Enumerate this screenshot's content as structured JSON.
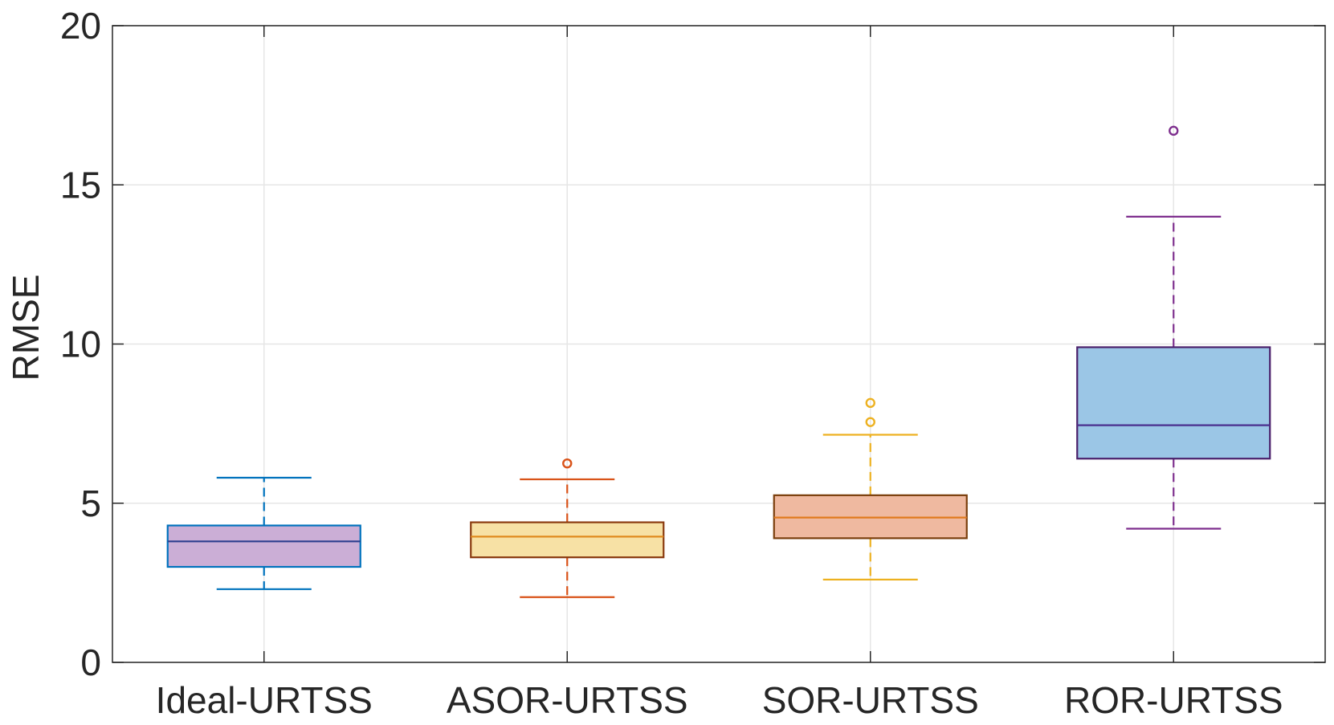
{
  "chart_data": {
    "type": "box",
    "title": "",
    "xlabel": "",
    "ylabel": "RMSE",
    "ylim": [
      0,
      20
    ],
    "yticks": [
      0,
      5,
      10,
      15,
      20
    ],
    "ytick_labels": [
      "0",
      "5",
      "10",
      "15",
      "20"
    ],
    "grid": true,
    "categories": [
      "Ideal-URTSS",
      "ASOR-URTSS",
      "SOR-URTSS",
      "ROR-URTSS"
    ],
    "boxes": [
      {
        "category": "Ideal-URTSS",
        "whisker_low": 2.3,
        "q1": 3.0,
        "median": 3.8,
        "q3": 4.3,
        "whisker_high": 5.8,
        "outliers": [],
        "fill": "#cbaed6",
        "edge": "#0072bd",
        "whisker_color": "#0072bd",
        "median_color": "#2e3f8f",
        "outlier_color": "#0072bd"
      },
      {
        "category": "ASOR-URTSS",
        "whisker_low": 2.05,
        "q1": 3.3,
        "median": 3.95,
        "q3": 4.4,
        "whisker_high": 5.75,
        "outliers": [
          6.25
        ],
        "fill": "#f7e1a5",
        "edge": "#8a3a0f",
        "whisker_color": "#d95319",
        "median_color": "#e08a1e",
        "outlier_color": "#d95319"
      },
      {
        "category": "SOR-URTSS",
        "whisker_low": 2.6,
        "q1": 3.9,
        "median": 4.55,
        "q3": 5.25,
        "whisker_high": 7.15,
        "outliers": [
          7.55,
          8.15
        ],
        "fill": "#efb9a0",
        "edge": "#7a3e0c",
        "whisker_color": "#edb120",
        "median_color": "#e07a1e",
        "outlier_color": "#edb120"
      },
      {
        "category": "ROR-URTSS",
        "whisker_low": 4.2,
        "q1": 6.4,
        "median": 7.45,
        "q3": 9.9,
        "whisker_high": 14.0,
        "outliers": [
          16.7
        ],
        "fill": "#9bc6e6",
        "edge": "#4a1f6a",
        "whisker_color": "#7e2f8e",
        "median_color": "#4a2f8e",
        "outlier_color": "#7e2f8e"
      }
    ]
  }
}
